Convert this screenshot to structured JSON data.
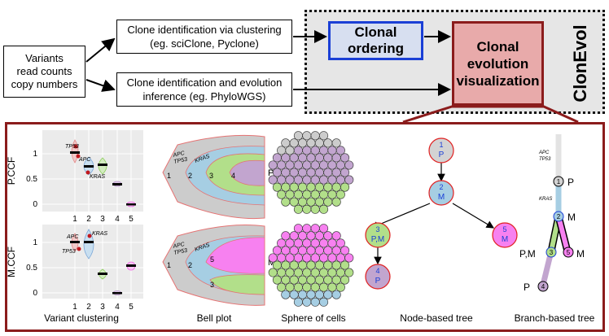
{
  "inputs": {
    "text": "Variants\nread counts\ncopy numbers"
  },
  "clustering_box": {
    "text": "Clone identification via clustering\n(eg. sciClone, Pyclone)"
  },
  "phylo_box": {
    "text": "Clone identification and evolution\ninference (eg. PhyloWGS)"
  },
  "clonal_ordering": {
    "text": "Clonal\nordering"
  },
  "evolution_viz": {
    "text": "Clonal\nevolution\nvisualization"
  },
  "clonevol_title": "ClonEvol",
  "variant_clustering": {
    "top_ylabel": "P.CCF",
    "bottom_ylabel": "M.CCF",
    "yticks": [
      "0",
      "0.5",
      "1"
    ],
    "xticks": [
      "1",
      "2",
      "3",
      "4",
      "5"
    ],
    "top_genes": [
      "TP53",
      "APC",
      "KRAS"
    ],
    "bottom_genes": [
      "APC",
      "KRAS",
      "TP53"
    ]
  },
  "bell_plot": {
    "top_side": "P",
    "bottom_side": "M",
    "top_genes": [
      "APC",
      "TP53",
      "KRAS"
    ],
    "top_numbers": [
      "1",
      "2",
      "3",
      "4"
    ],
    "bottom_genes": [
      "APC",
      "TP53",
      "KRAS"
    ],
    "bottom_numbers": [
      "1",
      "2",
      "5",
      "3"
    ]
  },
  "node_tree": {
    "nodes": [
      {
        "id": "1",
        "sample": "P"
      },
      {
        "id": "2",
        "sample": "M"
      },
      {
        "id": "3",
        "sample": "P,M"
      },
      {
        "id": "5",
        "sample": "M"
      },
      {
        "id": "4",
        "sample": "P"
      }
    ]
  },
  "branch_tree": {
    "genes_top": [
      "APC",
      "TP53"
    ],
    "gene_mid": "KRAS",
    "nodes": [
      "1",
      "2",
      "3",
      "5",
      "4"
    ],
    "samples": [
      "P",
      "M",
      "P,M",
      "M",
      "P"
    ]
  },
  "captions": {
    "clustering": "Variant clustering",
    "bell": "Bell plot",
    "sphere": "Sphere of cells",
    "node_tree": "Node-based tree",
    "branch_tree": "Branch-based tree"
  },
  "colors": {
    "clone1": "#cccccc",
    "clone2": "#a6cee3",
    "clone3": "#b2df8a",
    "clone4": "#c2a5cf",
    "clone5": "#f781f0",
    "frame": "#8b1c1c",
    "ordering_border": "#1a3fd6"
  }
}
